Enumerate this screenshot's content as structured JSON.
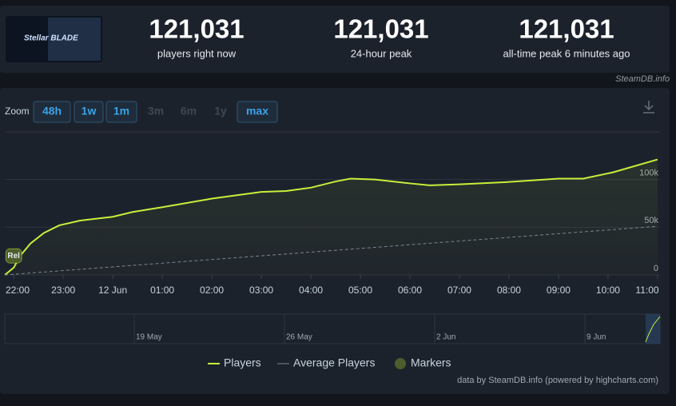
{
  "header": {
    "stats": [
      {
        "value": "121,031",
        "label": "players right now"
      },
      {
        "value": "121,031",
        "label": "24-hour peak"
      },
      {
        "value": "121,031",
        "label": "all-time peak 6 minutes ago"
      }
    ],
    "source": "SteamDB.info"
  },
  "zoom": {
    "title": "Zoom",
    "buttons": [
      {
        "label": "48h",
        "enabled": true
      },
      {
        "label": "1w",
        "enabled": true
      },
      {
        "label": "1m",
        "enabled": true
      },
      {
        "label": "3m",
        "enabled": false
      },
      {
        "label": "6m",
        "enabled": false
      },
      {
        "label": "1y",
        "enabled": false
      },
      {
        "label": "max",
        "enabled": true
      }
    ]
  },
  "chart_data": {
    "type": "line",
    "xlim": [
      -0.18,
      13.05
    ],
    "xticks": [
      {
        "value": 0,
        "label": "22:00"
      },
      {
        "value": 1,
        "label": "23:00"
      },
      {
        "value": 2,
        "label": "12 Jun"
      },
      {
        "value": 3,
        "label": "01:00"
      },
      {
        "value": 4,
        "label": "02:00"
      },
      {
        "value": 5,
        "label": "03:00"
      },
      {
        "value": 6,
        "label": "04:00"
      },
      {
        "value": 7,
        "label": "05:00"
      },
      {
        "value": 8,
        "label": "06:00"
      },
      {
        "value": 9,
        "label": "07:00"
      },
      {
        "value": 10,
        "label": "08:00"
      },
      {
        "value": 11,
        "label": "09:00"
      },
      {
        "value": 12,
        "label": "10:00"
      },
      {
        "value": 13,
        "label": "11:00"
      }
    ],
    "ylim": [
      0,
      150000
    ],
    "yticks": [
      0,
      {
        "value": 50000,
        "label": "50k"
      },
      {
        "value": 100000,
        "label": "100k"
      }
    ],
    "grid": true,
    "series": [
      {
        "name": "Players",
        "color": "#c6f03a",
        "x": [
          -0.18,
          0,
          0.13,
          0.34,
          0.61,
          0.92,
          1.34,
          2,
          2.4,
          3,
          4,
          5,
          5.5,
          6,
          6.5,
          6.8,
          7.3,
          8,
          8.4,
          9,
          10,
          11,
          11.5,
          12.1,
          13
        ],
        "values": [
          0,
          7600,
          20000,
          33000,
          44000,
          52000,
          57000,
          61000,
          66000,
          71000,
          80000,
          87000,
          88000,
          91500,
          98000,
          101000,
          100000,
          96000,
          94000,
          95000,
          97500,
          101000,
          101000,
          107600,
          121031
        ]
      },
      {
        "name": "Average Players",
        "color": "#7d848e",
        "dashed": true,
        "x": [
          -0.18,
          13
        ],
        "values": [
          0,
          51000
        ]
      }
    ],
    "markers": {
      "name": "Markers",
      "color": "#4b5e2c",
      "items": [
        {
          "label": "Rel",
          "x": 0,
          "value": 20000
        }
      ]
    },
    "navigator": [
      "19 May",
      "26 May",
      "2 Jun",
      "9 Jun"
    ],
    "credit": "data by SteamDB.info (powered by highcharts.com)"
  }
}
